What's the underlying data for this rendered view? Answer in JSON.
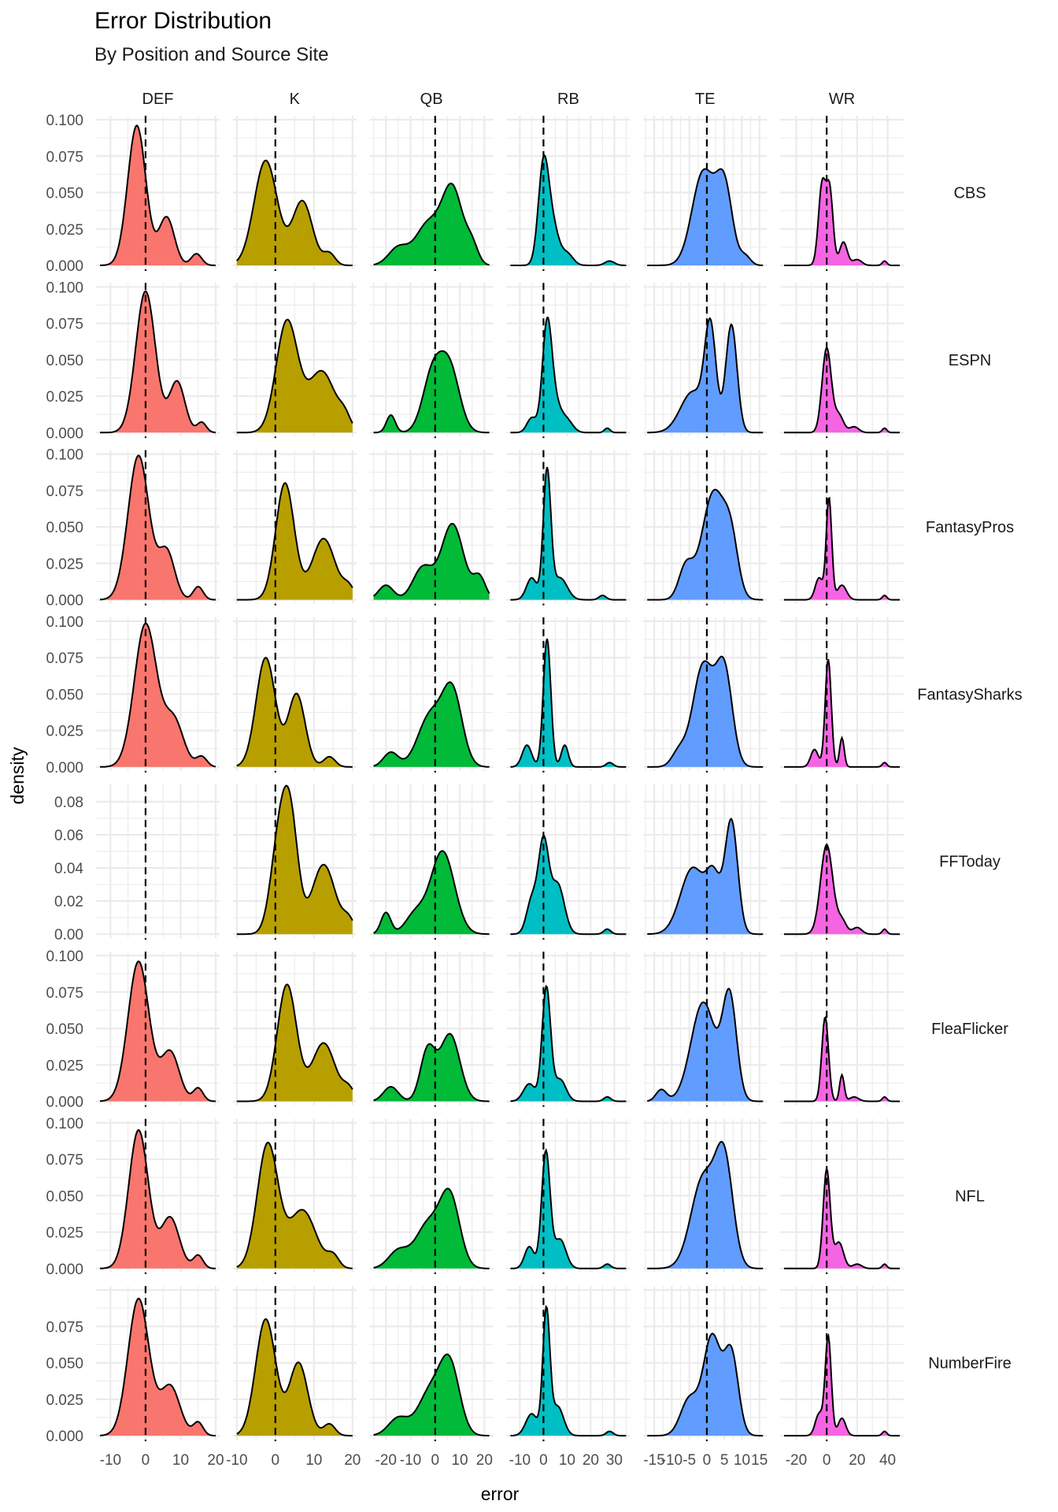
{
  "chart_data": {
    "type": "area",
    "title": "Error Distribution",
    "subtitle": "By Position and Source Site",
    "xlabel": "error",
    "ylabel": "density",
    "grid": true,
    "reference_line": {
      "x": 0,
      "style": "dashed",
      "color": "#000000"
    },
    "columns": [
      {
        "name": "DEF",
        "color": "#F8766D",
        "xlim": [
          -13,
          20
        ],
        "ticks": [
          -10,
          0,
          10,
          20
        ]
      },
      {
        "name": "K",
        "color": "#B79F00",
        "xlim": [
          -10,
          20
        ],
        "ticks": [
          -10,
          0,
          10,
          20
        ]
      },
      {
        "name": "QB",
        "color": "#00BA38",
        "xlim": [
          -25,
          22
        ],
        "ticks": [
          -20,
          -10,
          0,
          10,
          20
        ]
      },
      {
        "name": "RB",
        "color": "#00BFC4",
        "xlim": [
          -14,
          35
        ],
        "ticks": [
          -10,
          0,
          10,
          20,
          30
        ]
      },
      {
        "name": "TE",
        "color": "#619CFF",
        "xlim": [
          -17,
          16
        ],
        "ticks": [
          -15,
          -10,
          -5,
          0,
          5,
          10,
          15
        ]
      },
      {
        "name": "WR",
        "color": "#F564E3",
        "xlim": [
          -28,
          48
        ],
        "ticks": [
          -20,
          0,
          20,
          40
        ]
      }
    ],
    "rows": [
      {
        "name": "CBS",
        "ylim": [
          0,
          0.1
        ],
        "yticks": [
          "0.000",
          "0.025",
          "0.050",
          "0.075",
          "0.100"
        ]
      },
      {
        "name": "ESPN",
        "ylim": [
          0,
          0.1
        ],
        "yticks": [
          "0.000",
          "0.025",
          "0.050",
          "0.075",
          "0.100"
        ]
      },
      {
        "name": "FantasyPros",
        "ylim": [
          0,
          0.1
        ],
        "yticks": [
          "0.000",
          "0.025",
          "0.050",
          "0.075",
          "0.100"
        ]
      },
      {
        "name": "FantasySharks",
        "ylim": [
          0,
          0.1
        ],
        "yticks": [
          "0.000",
          "0.025",
          "0.050",
          "0.075",
          "0.100"
        ]
      },
      {
        "name": "FFToday",
        "ylim": [
          0,
          0.088
        ],
        "yticks": [
          "0.00",
          "0.02",
          "0.04",
          "0.06",
          "0.08"
        ]
      },
      {
        "name": "FleaFlicker",
        "ylim": [
          0,
          0.1
        ],
        "yticks": [
          "0.000",
          "0.025",
          "0.050",
          "0.075",
          "0.100"
        ]
      },
      {
        "name": "NFL",
        "ylim": [
          0,
          0.1
        ],
        "yticks": [
          "0.000",
          "0.025",
          "0.050",
          "0.075",
          "0.100"
        ]
      },
      {
        "name": "NumberFire",
        "ylim": [
          0,
          0.1
        ],
        "yticks": [
          "0.000",
          "0.025",
          "0.050",
          "0.075"
        ]
      }
    ],
    "density_components_note": "Each density approximated as a mixture of [mean, sd, peak_density] components in data units",
    "panels": {
      "CBS": {
        "DEF": [
          [
            -2.5,
            2.6,
            0.096
          ],
          [
            6,
            2.2,
            0.033
          ],
          [
            14.5,
            1.5,
            0.008
          ]
        ],
        "K": [
          [
            -2.5,
            3.0,
            0.072
          ],
          [
            7,
            2.6,
            0.044
          ],
          [
            14,
            1.5,
            0.008
          ]
        ],
        "QB": [
          [
            -15,
            4,
            0.012
          ],
          [
            -3,
            5,
            0.028
          ],
          [
            7,
            4.2,
            0.052
          ],
          [
            15,
            2.5,
            0.012
          ]
        ],
        "RB": [
          [
            0,
            2.2,
            0.068
          ],
          [
            4,
            2.5,
            0.025
          ],
          [
            10,
            2.5,
            0.008
          ],
          [
            28,
            2,
            0.003
          ]
        ],
        "TE": [
          [
            -1,
            3.2,
            0.064
          ],
          [
            5,
            2.3,
            0.052
          ],
          [
            11,
            1.5,
            0.006
          ]
        ],
        "WR": [
          [
            -3,
            2.4,
            0.055
          ],
          [
            2,
            2.2,
            0.05
          ],
          [
            11,
            2.5,
            0.016
          ],
          [
            20,
            3,
            0.004
          ],
          [
            38,
            1.5,
            0.003
          ]
        ]
      },
      "ESPN": {
        "DEF": [
          [
            0,
            2.8,
            0.097
          ],
          [
            9,
            2.2,
            0.035
          ],
          [
            16,
            1.3,
            0.007
          ]
        ],
        "K": [
          [
            3,
            2.8,
            0.076
          ],
          [
            12,
            3.5,
            0.042
          ],
          [
            18,
            1.5,
            0.008
          ]
        ],
        "QB": [
          [
            -18,
            1.8,
            0.012
          ],
          [
            -1,
            4,
            0.04
          ],
          [
            6,
            4,
            0.042
          ]
        ],
        "RB": [
          [
            1.5,
            2.0,
            0.072
          ],
          [
            5,
            2.5,
            0.018
          ],
          [
            10,
            2.5,
            0.008
          ],
          [
            -5,
            2,
            0.01
          ],
          [
            27,
            1.2,
            0.003
          ]
        ],
        "TE": [
          [
            -4,
            3.5,
            0.028
          ],
          [
            1,
            1.6,
            0.068
          ],
          [
            7,
            1.6,
            0.074
          ]
        ],
        "WR": [
          [
            0,
            3.0,
            0.058
          ],
          [
            8,
            3,
            0.012
          ],
          [
            18,
            3,
            0.004
          ],
          [
            38,
            1.5,
            0.003
          ]
        ]
      },
      "FantasyPros": {
        "DEF": [
          [
            -2,
            3.0,
            0.099
          ],
          [
            6,
            2.3,
            0.033
          ],
          [
            15,
            1.4,
            0.009
          ]
        ],
        "K": [
          [
            2.5,
            2.4,
            0.08
          ],
          [
            12.5,
            3,
            0.042
          ],
          [
            19,
            1.5,
            0.008
          ]
        ],
        "QB": [
          [
            -20,
            3,
            0.01
          ],
          [
            -5,
            4,
            0.022
          ],
          [
            7,
            4.5,
            0.052
          ],
          [
            18,
            2.5,
            0.015
          ]
        ],
        "RB": [
          [
            1.5,
            1.6,
            0.088
          ],
          [
            -5,
            2.2,
            0.015
          ],
          [
            7,
            3,
            0.015
          ],
          [
            25,
            1.5,
            0.003
          ]
        ],
        "TE": [
          [
            -6,
            2,
            0.022
          ],
          [
            2,
            3.4,
            0.074
          ],
          [
            7,
            2,
            0.03
          ]
        ],
        "WR": [
          [
            1.5,
            1.8,
            0.07
          ],
          [
            -5,
            2.5,
            0.015
          ],
          [
            10,
            3,
            0.01
          ],
          [
            38,
            1.5,
            0.003
          ]
        ]
      },
      "FantasySharks": {
        "DEF": [
          [
            0,
            3.2,
            0.098
          ],
          [
            8,
            2.8,
            0.032
          ],
          [
            16,
            1.5,
            0.007
          ]
        ],
        "K": [
          [
            -2.5,
            2.5,
            0.075
          ],
          [
            5.5,
            2.2,
            0.05
          ],
          [
            14,
            1.5,
            0.007
          ]
        ],
        "QB": [
          [
            -18,
            3,
            0.01
          ],
          [
            -2,
            5,
            0.035
          ],
          [
            7,
            4,
            0.05
          ]
        ],
        "RB": [
          [
            1.5,
            1.6,
            0.088
          ],
          [
            -7,
            2,
            0.015
          ],
          [
            9,
            1.5,
            0.015
          ],
          [
            28,
            1.5,
            0.003
          ]
        ],
        "TE": [
          [
            -1,
            3,
            0.07
          ],
          [
            5,
            2.3,
            0.064
          ],
          [
            -8,
            2,
            0.01
          ]
        ],
        "WR": [
          [
            1,
            2.0,
            0.074
          ],
          [
            -8,
            2.5,
            0.012
          ],
          [
            10,
            1.5,
            0.02
          ],
          [
            38,
            1.5,
            0.003
          ]
        ]
      },
      "FFToday": {
        "DEF": [],
        "K": [
          [
            1,
            2.2,
            0.055
          ],
          [
            4,
            2,
            0.06
          ],
          [
            12.5,
            3,
            0.042
          ],
          [
            19,
            1.5,
            0.008
          ]
        ],
        "QB": [
          [
            -20,
            2,
            0.013
          ],
          [
            -8,
            4,
            0.012
          ],
          [
            3,
            4.8,
            0.05
          ]
        ],
        "RB": [
          [
            -5,
            2.2,
            0.02
          ],
          [
            0,
            2.2,
            0.055
          ],
          [
            6,
            2.8,
            0.03
          ],
          [
            27,
            1.5,
            0.003
          ]
        ],
        "TE": [
          [
            -4,
            3.5,
            0.04
          ],
          [
            2,
            2,
            0.03
          ],
          [
            7,
            1.8,
            0.068
          ]
        ],
        "WR": [
          [
            0,
            4,
            0.054
          ],
          [
            10,
            3,
            0.008
          ],
          [
            20,
            3,
            0.004
          ],
          [
            38,
            1.5,
            0.003
          ]
        ]
      },
      "FleaFlicker": {
        "DEF": [
          [
            -2,
            3.0,
            0.096
          ],
          [
            7,
            2.6,
            0.034
          ],
          [
            15,
            1.4,
            0.009
          ]
        ],
        "K": [
          [
            3,
            2.5,
            0.08
          ],
          [
            12.5,
            3,
            0.04
          ],
          [
            19,
            1.5,
            0.008
          ]
        ],
        "QB": [
          [
            -18,
            3,
            0.01
          ],
          [
            -3,
            3,
            0.035
          ],
          [
            6,
            4,
            0.046
          ]
        ],
        "RB": [
          [
            1.2,
            1.8,
            0.078
          ],
          [
            -6,
            2.5,
            0.012
          ],
          [
            7,
            2.5,
            0.015
          ],
          [
            27,
            1.5,
            0.003
          ]
        ],
        "TE": [
          [
            -13,
            1.5,
            0.008
          ],
          [
            -1,
            3.5,
            0.068
          ],
          [
            6.5,
            2,
            0.07
          ]
        ],
        "WR": [
          [
            -1,
            2.2,
            0.058
          ],
          [
            10,
            1.5,
            0.018
          ],
          [
            18,
            3,
            0.003
          ],
          [
            38,
            1.5,
            0.003
          ]
        ]
      },
      "NFL": {
        "DEF": [
          [
            -2,
            2.8,
            0.095
          ],
          [
            7,
            2.6,
            0.035
          ],
          [
            15,
            1.4,
            0.009
          ]
        ],
        "K": [
          [
            -2,
            2.7,
            0.085
          ],
          [
            7,
            3.5,
            0.04
          ],
          [
            15,
            1.5,
            0.008
          ]
        ],
        "QB": [
          [
            -15,
            4,
            0.012
          ],
          [
            -3,
            5,
            0.03
          ],
          [
            6,
            4,
            0.048
          ]
        ],
        "RB": [
          [
            1,
            1.8,
            0.08
          ],
          [
            -6,
            2,
            0.015
          ],
          [
            7,
            2.5,
            0.02
          ],
          [
            27,
            1.5,
            0.003
          ]
        ],
        "TE": [
          [
            -1,
            3.5,
            0.062
          ],
          [
            5,
            2.5,
            0.07
          ]
        ],
        "WR": [
          [
            0,
            2.3,
            0.068
          ],
          [
            8,
            3,
            0.018
          ],
          [
            20,
            3,
            0.003
          ],
          [
            38,
            1.5,
            0.003
          ]
        ]
      },
      "NumberFire": {
        "DEF": [
          [
            -2,
            3.0,
            0.094
          ],
          [
            7,
            2.8,
            0.034
          ],
          [
            15,
            1.4,
            0.009
          ]
        ],
        "K": [
          [
            -2.5,
            2.6,
            0.08
          ],
          [
            6,
            2.4,
            0.05
          ],
          [
            14,
            1.5,
            0.008
          ]
        ],
        "QB": [
          [
            -15,
            4,
            0.012
          ],
          [
            -2,
            5,
            0.03
          ],
          [
            6,
            4,
            0.046
          ]
        ],
        "RB": [
          [
            1.2,
            1.5,
            0.085
          ],
          [
            -5,
            2.5,
            0.015
          ],
          [
            6,
            2.5,
            0.02
          ],
          [
            28,
            1.5,
            0.003
          ]
        ],
        "TE": [
          [
            -5,
            2.5,
            0.025
          ],
          [
            1.5,
            2.5,
            0.068
          ],
          [
            7,
            2,
            0.055
          ]
        ],
        "WR": [
          [
            1,
            2.0,
            0.068
          ],
          [
            -5,
            2.5,
            0.015
          ],
          [
            10,
            2.5,
            0.012
          ],
          [
            38,
            1.5,
            0.003
          ]
        ]
      }
    }
  }
}
